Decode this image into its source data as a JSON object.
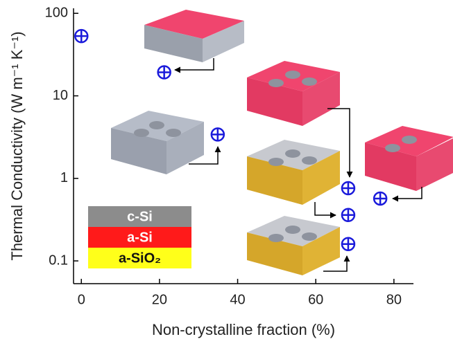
{
  "chart_data": {
    "type": "scatter",
    "xlabel": "Non-crystalline fraction (%)",
    "ylabel": "Thermal Conductivity (W m⁻¹ K⁻¹)",
    "x": [
      0,
      21.2,
      34.9,
      68.3,
      68.3,
      68.3,
      76.5
    ],
    "values": [
      53,
      19.3,
      3.4,
      0.76,
      0.36,
      0.16,
      0.57
    ],
    "color": "#1a1adb",
    "xlim": [
      -2,
      85
    ],
    "xticks": [
      0,
      20,
      40,
      60,
      80
    ],
    "ylim": [
      0.053,
      115
    ],
    "yticks": [
      0.1,
      1,
      10,
      100
    ],
    "log_y": true,
    "legend": [
      {
        "name": "c-Si",
        "color": "#8c8c8c"
      },
      {
        "name": "a-Si",
        "color": "#ff1a1a"
      },
      {
        "name": "a-SiO₂",
        "color": "#ffff1a"
      }
    ]
  }
}
